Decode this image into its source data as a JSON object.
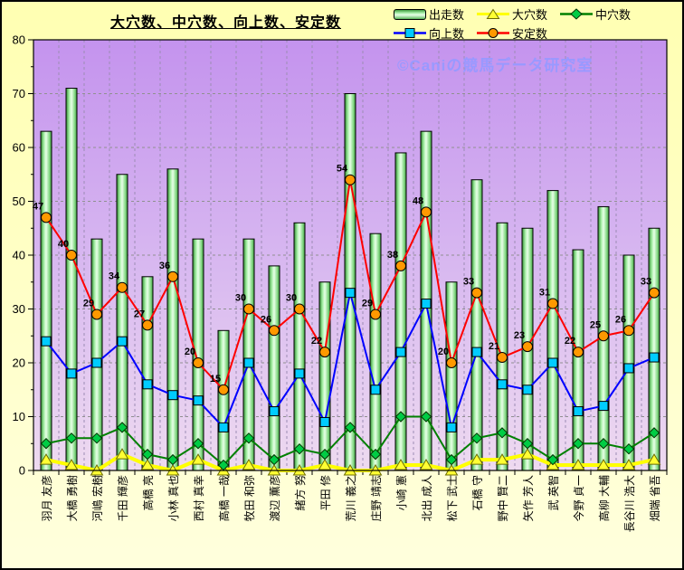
{
  "title": "大穴数、中穴数、向上数、安定数",
  "watermark": "©Caniの競馬データ研究室",
  "colors": {
    "outer_background": "#ffffc9",
    "plot_background_top": "#c493ee",
    "plot_background_bottom": "#eedaf0",
    "gridline": "#909090",
    "axis": "#000000",
    "watermark": "#9999ff"
  },
  "chart_data": {
    "type": "bar",
    "title": "大穴数、中穴数、向上数、安定数",
    "categories": [
      "羽月 友彦",
      "大橋 勇樹",
      "河嶋 宏樹",
      "千田 輝彦",
      "高橋 亮",
      "小林 真也",
      "西村 真幸",
      "高橋 一哉",
      "牧田 和弥",
      "渡辺 薫彦",
      "緒方 努",
      "平田 修",
      "荒川 義之",
      "庄野 靖志",
      "小崎 憲",
      "北出 成人",
      "松下 武士",
      "石橋 守",
      "野中 賢二",
      "矢作 芳人",
      "武 英智",
      "今野 貞一",
      "高柳 大輔",
      "長谷川 浩大",
      "畑端 省吾"
    ],
    "series": [
      {
        "name": "出走数",
        "type": "bar",
        "color": "#8ee08e",
        "values": [
          63,
          71,
          43,
          55,
          36,
          56,
          43,
          26,
          43,
          38,
          46,
          35,
          70,
          44,
          59,
          63,
          35,
          54,
          46,
          45,
          52,
          41,
          49,
          40,
          45
        ]
      },
      {
        "name": "大穴数",
        "type": "line",
        "marker": "triangle",
        "line_color": "#ffff00",
        "marker_color": "#ffff33",
        "values": [
          2,
          1,
          0,
          3,
          1,
          0,
          2,
          0,
          1,
          0,
          0,
          1,
          0,
          0,
          1,
          1,
          0,
          2,
          2,
          3,
          1,
          1,
          1,
          1,
          2
        ]
      },
      {
        "name": "中穴数",
        "type": "line",
        "marker": "diamond",
        "line_color": "#008000",
        "marker_color": "#00cc44",
        "values": [
          5,
          6,
          6,
          8,
          3,
          2,
          5,
          1,
          6,
          2,
          4,
          3,
          8,
          3,
          10,
          10,
          2,
          6,
          7,
          5,
          2,
          5,
          5,
          4,
          7
        ]
      },
      {
        "name": "向上数",
        "type": "line",
        "marker": "square",
        "line_color": "#0000ff",
        "marker_color": "#00ccff",
        "values": [
          24,
          18,
          20,
          24,
          16,
          14,
          13,
          8,
          20,
          11,
          18,
          9,
          33,
          15,
          22,
          31,
          8,
          22,
          16,
          15,
          20,
          11,
          12,
          19,
          21
        ]
      },
      {
        "name": "安定数",
        "type": "line",
        "marker": "circle",
        "line_color": "#ff0000",
        "marker_color": "#ff9900",
        "data_labels": true,
        "values": [
          47,
          40,
          29,
          34,
          27,
          36,
          20,
          15,
          30,
          26,
          30,
          22,
          54,
          29,
          38,
          48,
          20,
          33,
          21,
          23,
          31,
          22,
          25,
          26,
          33
        ]
      }
    ],
    "ylim": [
      0,
      80
    ],
    "ytick_step": 10,
    "ytick_labels": [
      "0",
      "10",
      "20",
      "30",
      "40",
      "50",
      "60",
      "70",
      "80"
    ],
    "grid": true,
    "legend_position": "top-right",
    "xlabel": "",
    "ylabel": ""
  }
}
